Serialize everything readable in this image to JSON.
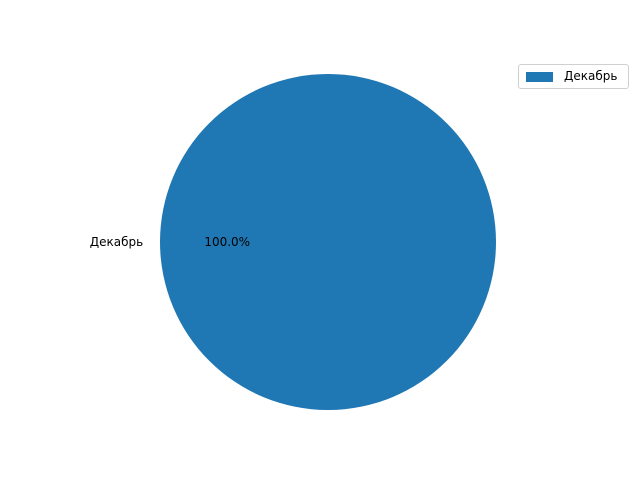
{
  "chart_data": {
    "type": "pie",
    "title": "",
    "categories": [
      "Декабрь"
    ],
    "values": [
      100
    ],
    "pct_labels": [
      "100.0%"
    ],
    "colors": [
      "#1f77b4"
    ],
    "legend": {
      "placement": "top-right",
      "entries": [
        "Декабрь"
      ]
    }
  }
}
